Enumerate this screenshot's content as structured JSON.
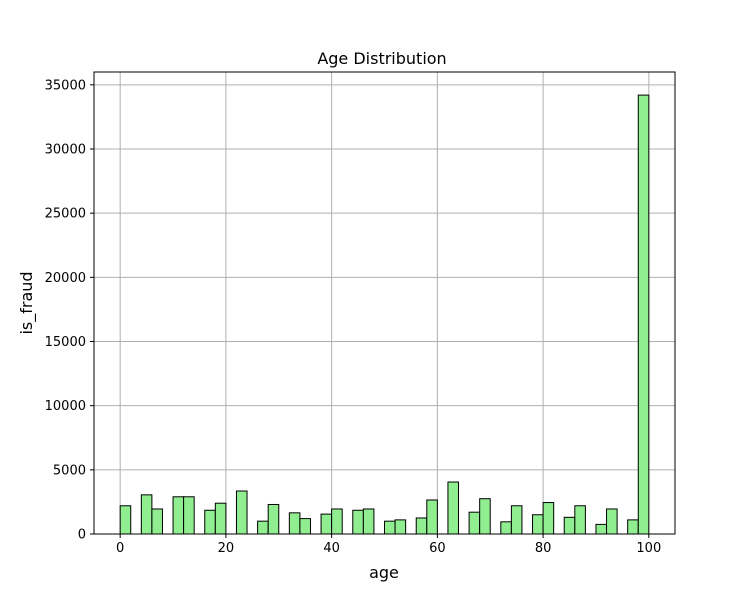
{
  "chart_data": {
    "type": "bar",
    "title": "Age Distribution",
    "xlabel": "age",
    "ylabel": "is_fraud",
    "xlim": [
      -4.95,
      104.95
    ],
    "ylim": [
      0,
      36000
    ],
    "xticks": [
      0,
      20,
      40,
      60,
      80,
      100
    ],
    "yticks": [
      0,
      5000,
      10000,
      15000,
      20000,
      25000,
      30000,
      35000
    ],
    "bin_width": 2,
    "grid": true,
    "legend": "none",
    "bar_color": "#90ee90",
    "bar_edge_color": "#000000",
    "bars": [
      {
        "x0": 0,
        "x1": 2,
        "value": 2200
      },
      {
        "x0": 4,
        "x1": 6,
        "value": 3050
      },
      {
        "x0": 6,
        "x1": 8,
        "value": 1950
      },
      {
        "x0": 10,
        "x1": 12,
        "value": 2900
      },
      {
        "x0": 12,
        "x1": 14,
        "value": 2900
      },
      {
        "x0": 16,
        "x1": 18,
        "value": 1850
      },
      {
        "x0": 18,
        "x1": 20,
        "value": 2400
      },
      {
        "x0": 22,
        "x1": 24,
        "value": 3350
      },
      {
        "x0": 26,
        "x1": 28,
        "value": 1000
      },
      {
        "x0": 28,
        "x1": 30,
        "value": 2300
      },
      {
        "x0": 32,
        "x1": 34,
        "value": 1650
      },
      {
        "x0": 34,
        "x1": 36,
        "value": 1200
      },
      {
        "x0": 38,
        "x1": 40,
        "value": 1550
      },
      {
        "x0": 40,
        "x1": 42,
        "value": 1950
      },
      {
        "x0": 44,
        "x1": 46,
        "value": 1850
      },
      {
        "x0": 46,
        "x1": 48,
        "value": 1950
      },
      {
        "x0": 50,
        "x1": 52,
        "value": 1000
      },
      {
        "x0": 52,
        "x1": 54,
        "value": 1100
      },
      {
        "x0": 56,
        "x1": 58,
        "value": 1250
      },
      {
        "x0": 58,
        "x1": 60,
        "value": 2650
      },
      {
        "x0": 62,
        "x1": 64,
        "value": 4050
      },
      {
        "x0": 66,
        "x1": 68,
        "value": 1700
      },
      {
        "x0": 68,
        "x1": 70,
        "value": 2750
      },
      {
        "x0": 72,
        "x1": 74,
        "value": 950
      },
      {
        "x0": 74,
        "x1": 76,
        "value": 2200
      },
      {
        "x0": 78,
        "x1": 80,
        "value": 1500
      },
      {
        "x0": 80,
        "x1": 82,
        "value": 2450
      },
      {
        "x0": 84,
        "x1": 86,
        "value": 1300
      },
      {
        "x0": 86,
        "x1": 88,
        "value": 2200
      },
      {
        "x0": 90,
        "x1": 92,
        "value": 750
      },
      {
        "x0": 92,
        "x1": 94,
        "value": 1950
      },
      {
        "x0": 96,
        "x1": 98,
        "value": 1100
      },
      {
        "x0": 98,
        "x1": 100,
        "value": 34200
      }
    ]
  }
}
